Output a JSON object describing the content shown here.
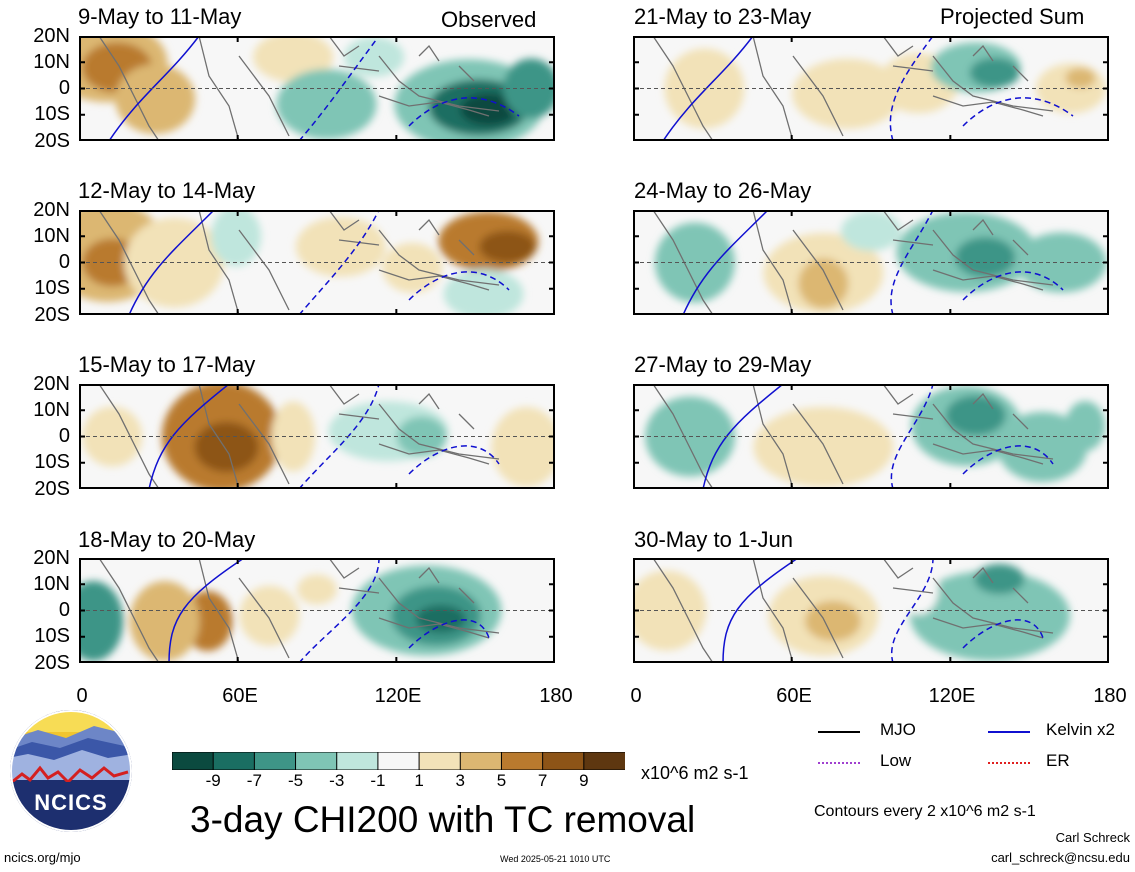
{
  "panels_left": [
    {
      "title": "9-May to 11-May"
    },
    {
      "title": "12-May to 14-May"
    },
    {
      "title": "15-May to 17-May"
    },
    {
      "title": "18-May to 20-May"
    }
  ],
  "panels_right": [
    {
      "title": "21-May to 23-May"
    },
    {
      "title": "24-May to 26-May"
    },
    {
      "title": "27-May to 29-May"
    },
    {
      "title": "30-May to 1-Jun"
    }
  ],
  "headers": {
    "left": "Observed",
    "right": "Projected Sum"
  },
  "lat_labels": [
    "20N",
    "10N",
    "0",
    "10S",
    "20S"
  ],
  "lon_labels": [
    "0",
    "60E",
    "120E",
    "180"
  ],
  "colorbar": {
    "ticks": [
      "-9",
      "-7",
      "-5",
      "-3",
      "-1",
      "1",
      "3",
      "5",
      "7",
      "9"
    ],
    "colors": [
      "#0b4a3f",
      "#1a6e62",
      "#3e9587",
      "#7fc5b5",
      "#bfe6dd",
      "#f7f7f7",
      "#f2e2b8",
      "#dcb772",
      "#b97a2e",
      "#8d5417",
      "#5e3710"
    ],
    "units": "x10^6 m2 s-1"
  },
  "legend": {
    "items": [
      {
        "label": "MJO",
        "color": "#000000"
      },
      {
        "label": "Kelvin x2",
        "color": "#1010d0"
      },
      {
        "label": "Low",
        "color": "#a040d0"
      },
      {
        "label": "ER",
        "color": "#e02020"
      }
    ],
    "contours_note": "Contours every 2 x10^6 m2 s-1"
  },
  "footer": {
    "title": "3-day CHI200 with TC removal",
    "site": "ncics.org/mjo",
    "timestamp": "Wed 2025-05-21 1010 UTC",
    "author": "Carl Schreck",
    "email": "carl_schreck@ncsu.edu",
    "logo_text": "NCICS"
  }
}
